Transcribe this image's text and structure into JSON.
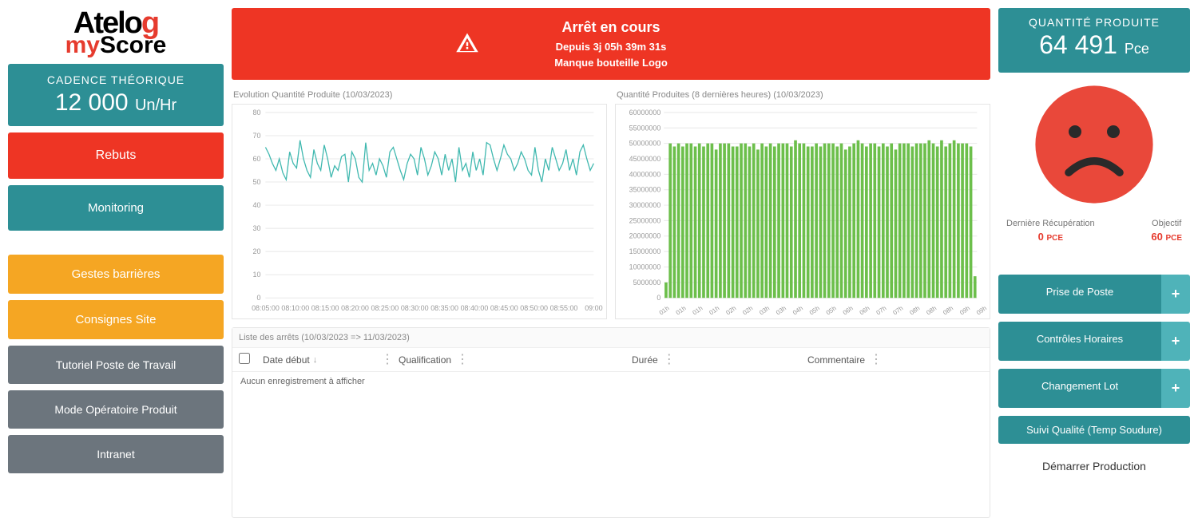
{
  "logo": {
    "line1_a": "Atelo",
    "line1_g": "g",
    "line2_m": "my",
    "line2_s": "Score"
  },
  "left": {
    "cadence": {
      "label": "CADENCE THÉORIQUE",
      "value": "12 000",
      "unit": "Un/Hr"
    },
    "rebuts": "Rebuts",
    "monitoring": "Monitoring",
    "gestes": "Gestes barrières",
    "consignes": "Consignes Site",
    "tutoriel": "Tutoriel Poste de Travail",
    "mode": "Mode Opératoire Produit",
    "intranet": "Intranet"
  },
  "alert": {
    "background": "#ee3524",
    "title": "Arrêt en cours",
    "since": "Depuis 3j 05h 39m 31s",
    "reason": "Manque bouteille Logo"
  },
  "chart_left": {
    "type": "line",
    "title": "Evolution Quantité Produite (10/03/2023)",
    "ylim": [
      0,
      80
    ],
    "ytick_step": 10,
    "xlabels": [
      "08:05:00",
      "08:10:00",
      "08:15:00",
      "08:20:00",
      "08:25:00",
      "08:30:00",
      "08:35:00",
      "08:40:00",
      "08:45:00",
      "08:50:00",
      "08:55:00",
      "09:00"
    ],
    "values": [
      65,
      62,
      58,
      55,
      60,
      54,
      51,
      63,
      58,
      56,
      68,
      60,
      55,
      52,
      64,
      58,
      55,
      66,
      60,
      52,
      57,
      55,
      61,
      62,
      50,
      63,
      60,
      52,
      50,
      67,
      55,
      58,
      53,
      60,
      57,
      52,
      63,
      65,
      60,
      55,
      51,
      58,
      62,
      60,
      53,
      65,
      60,
      53,
      57,
      63,
      60,
      53,
      62,
      55,
      60,
      50,
      65,
      55,
      58,
      52,
      63,
      55,
      60,
      53,
      67,
      66,
      60,
      55,
      60,
      66,
      62,
      60,
      55,
      58,
      63,
      60,
      55,
      53,
      65,
      55,
      50,
      60,
      55,
      65,
      60,
      55,
      58,
      64,
      55,
      60,
      53,
      63,
      66,
      60,
      55,
      58
    ],
    "line_color": "#3fb8af",
    "grid_color": "#e8e8e8",
    "background_color": "#ffffff",
    "axis_fontsize": 9
  },
  "chart_right": {
    "type": "bar",
    "title": "Quantité Produites (8 dernières heures) (10/03/2023)",
    "ylim": [
      0,
      60000000
    ],
    "ytick_step": 5000000,
    "xlabels": [
      "01h",
      "01h",
      "01h",
      "01h",
      "02h",
      "02h",
      "03h",
      "03h",
      "04h",
      "05h",
      "05h",
      "06h",
      "06h",
      "07h",
      "07h",
      "08h",
      "08h",
      "08h",
      "09h",
      "09h"
    ],
    "values": [
      5,
      50,
      49,
      50,
      49,
      50,
      50,
      49,
      50,
      49,
      50,
      50,
      48,
      50,
      50,
      50,
      49,
      49,
      50,
      50,
      49,
      50,
      48,
      50,
      49,
      50,
      49,
      50,
      50,
      50,
      49,
      51,
      50,
      50,
      49,
      49,
      50,
      49,
      50,
      50,
      50,
      49,
      50,
      48,
      49,
      50,
      51,
      50,
      49,
      50,
      50,
      49,
      50,
      49,
      50,
      48,
      50,
      50,
      50,
      49,
      50,
      50,
      50,
      51,
      50,
      49,
      51,
      49,
      50,
      51,
      50,
      50,
      50,
      49,
      7
    ],
    "bar_color": "#6cbf4b",
    "grid_color": "#e8e8e8",
    "background_color": "#ffffff",
    "axis_fontsize": 9
  },
  "table": {
    "title": "Liste des arrêts (10/03/2023 => 11/03/2023)",
    "columns": [
      "Date début",
      "Qualification",
      "Durée",
      "Commentaire"
    ],
    "empty_text": "Aucun enregistrement à afficher"
  },
  "right": {
    "qty": {
      "label": "QUANTITÉ PRODUITE",
      "value": "64 491",
      "unit": "Pce"
    },
    "face_color": "#e9483a",
    "metrics": {
      "recup_label": "Dernière Récupération",
      "recup_value": "0",
      "recup_unit": "PCE",
      "obj_label": "Objectif",
      "obj_value": "60",
      "obj_unit": "PCE"
    },
    "btn_prise": "Prise de Poste",
    "btn_ctrl": "Contrôles Horaires",
    "btn_lot": "Changement Lot",
    "btn_qualite": "Suivi Qualité (Temp Soudure)",
    "btn_demarrer": "Démarrer Production",
    "plus": "+"
  }
}
